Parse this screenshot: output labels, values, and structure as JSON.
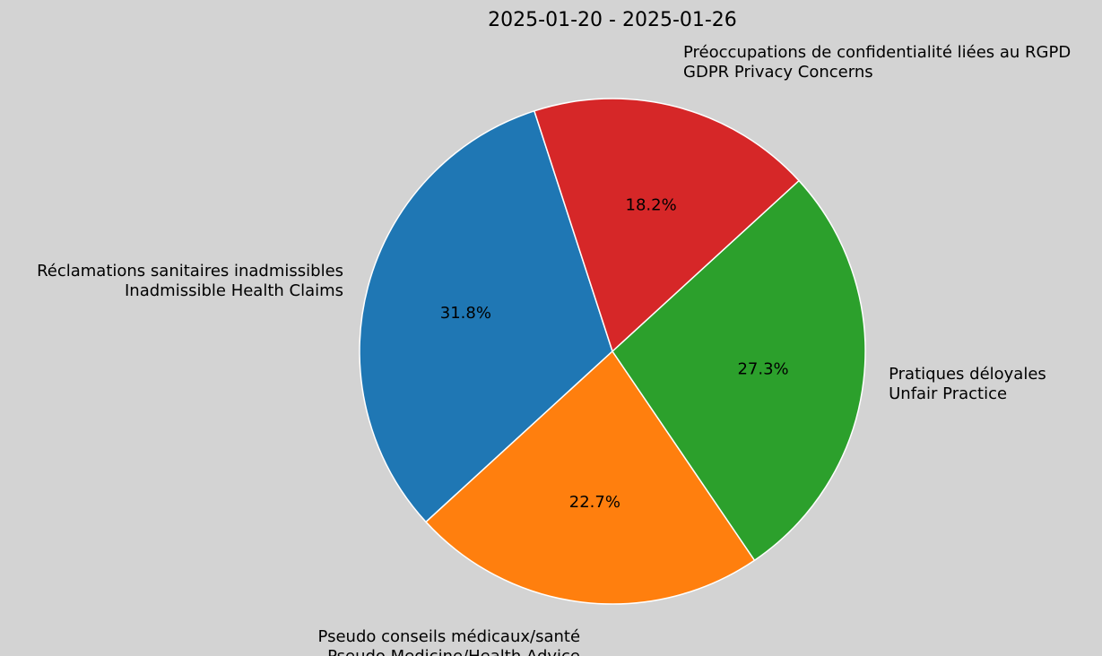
{
  "chart_data": {
    "type": "pie",
    "title": "2025-01-20 - 2025-01-26",
    "start_angle_deg": 108,
    "direction": "counterclockwise",
    "slices": [
      {
        "label_fr": "Réclamations sanitaires inadmissibles",
        "label_en": "Inadmissible Health Claims",
        "value": 31.8,
        "pct_text": "31.8%",
        "color": "#1f77b4"
      },
      {
        "label_fr": "Pseudo conseils médicaux/santé",
        "label_en": "Pseudo Medicine/Health Advice",
        "value": 22.7,
        "pct_text": "22.7%",
        "color": "#ff7f0e"
      },
      {
        "label_fr": "Pratiques déloyales",
        "label_en": "Unfair Practice",
        "value": 27.3,
        "pct_text": "27.3%",
        "color": "#2ca02c"
      },
      {
        "label_fr": "Préoccupations de confidentialité liées au RGPD",
        "label_en": "GDPR Privacy Concerns",
        "value": 18.2,
        "pct_text": "18.2%",
        "color": "#d62728"
      }
    ]
  },
  "colors": {
    "background": "#d3d3d3",
    "edge": "#ffffff"
  }
}
